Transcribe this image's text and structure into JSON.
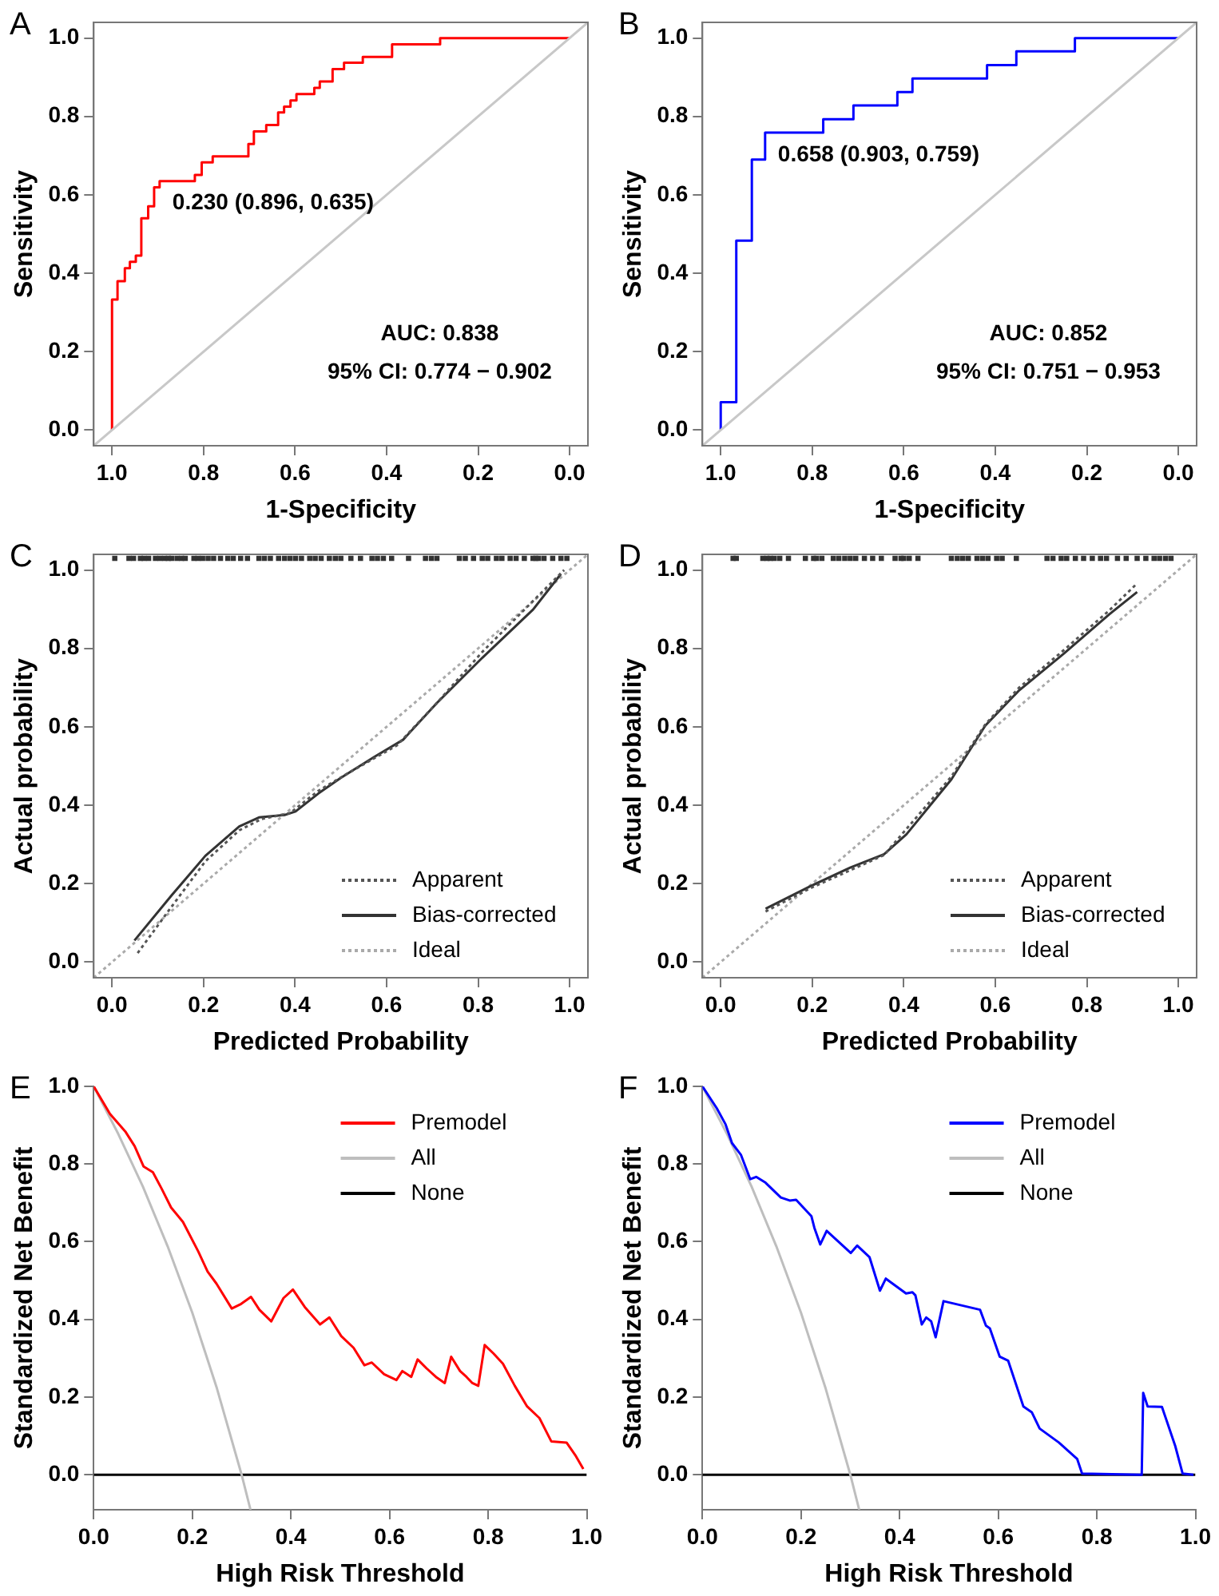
{
  "chart_data": [
    {
      "type": "line",
      "title": "A",
      "xlabel": "1-Specificity",
      "ylabel": "Sensitivity",
      "xlim": [
        1.04,
        -0.04
      ],
      "ylim": [
        -0.04,
        1.04
      ],
      "xticks": [
        {
          "value": 1,
          "label": "1.0"
        },
        {
          "value": 0.8,
          "label": "0.8"
        },
        {
          "value": 0.6,
          "label": "0.6"
        },
        {
          "value": 0.4,
          "label": "0.4"
        },
        {
          "value": 0.2,
          "label": "0.2"
        },
        {
          "value": 0,
          "label": "0.0"
        }
      ],
      "yticks": [
        {
          "value": 0,
          "label": "0.0"
        },
        {
          "value": 0.2,
          "label": "0.2"
        },
        {
          "value": 0.4,
          "label": "0.4"
        },
        {
          "value": 0.6,
          "label": "0.6"
        },
        {
          "value": 0.8,
          "label": "0.8"
        },
        {
          "value": 1,
          "label": "1.0"
        }
      ],
      "grid": false,
      "legend": false,
      "marker": "none",
      "series": [
        {
          "color": "#c8c8c8",
          "x": [
            1.04,
            -0.04
          ],
          "values": [
            -0.04,
            1.04
          ]
        },
        {
          "color": "#ff0000",
          "x": [
            1.0,
            1.0,
            0.988,
            0.988,
            0.972,
            0.972,
            0.961,
            0.961,
            0.948,
            0.948,
            0.936,
            0.936,
            0.921,
            0.921,
            0.908,
            0.908,
            0.896,
            0.896,
            0.819,
            0.819,
            0.804,
            0.804,
            0.78,
            0.78,
            0.702,
            0.702,
            0.69,
            0.69,
            0.663,
            0.663,
            0.637,
            0.637,
            0.624,
            0.624,
            0.61,
            0.61,
            0.597,
            0.597,
            0.558,
            0.558,
            0.546,
            0.546,
            0.518,
            0.518,
            0.493,
            0.493,
            0.452,
            0.452,
            0.388,
            0.388,
            0.283,
            0.283,
            0.0
          ],
          "values": [
            0,
            0.333,
            0.333,
            0.38,
            0.38,
            0.413,
            0.413,
            0.429,
            0.429,
            0.445,
            0.445,
            0.54,
            0.54,
            0.571,
            0.571,
            0.619,
            0.619,
            0.635,
            0.635,
            0.651,
            0.651,
            0.683,
            0.683,
            0.698,
            0.698,
            0.73,
            0.73,
            0.762,
            0.762,
            0.778,
            0.778,
            0.81,
            0.81,
            0.825,
            0.825,
            0.841,
            0.841,
            0.857,
            0.857,
            0.873,
            0.873,
            0.889,
            0.889,
            0.921,
            0.921,
            0.937,
            0.937,
            0.952,
            0.952,
            0.984,
            0.984,
            1.0,
            1.0
          ]
        }
      ],
      "annotations": [
        {
          "text": "0.230 (0.896, 0.635)",
          "x": 0.896,
          "y": 0.635
        },
        "AUC: 0.838",
        "95% CI: 0.774 − 0.902"
      ]
    },
    {
      "type": "line",
      "title": "B",
      "xlabel": "1-Specificity",
      "ylabel": "Sensitivity",
      "xlim": [
        1.04,
        -0.04
      ],
      "ylim": [
        -0.04,
        1.04
      ],
      "xticks": [
        {
          "value": 1,
          "label": "1.0"
        },
        {
          "value": 0.8,
          "label": "0.8"
        },
        {
          "value": 0.6,
          "label": "0.6"
        },
        {
          "value": 0.4,
          "label": "0.4"
        },
        {
          "value": 0.2,
          "label": "0.2"
        },
        {
          "value": 0,
          "label": "0.0"
        }
      ],
      "yticks": [
        {
          "value": 0,
          "label": "0.0"
        },
        {
          "value": 0.2,
          "label": "0.2"
        },
        {
          "value": 0.4,
          "label": "0.4"
        },
        {
          "value": 0.6,
          "label": "0.6"
        },
        {
          "value": 0.8,
          "label": "0.8"
        },
        {
          "value": 1,
          "label": "1.0"
        }
      ],
      "grid": false,
      "legend": false,
      "marker": "none",
      "series": [
        {
          "color": "#c8c8c8",
          "x": [
            1.04,
            -0.04
          ],
          "values": [
            -0.04,
            1.04
          ]
        },
        {
          "color": "#0000ff",
          "x": [
            1.0,
            1.0,
            0.966,
            0.966,
            0.932,
            0.932,
            0.903,
            0.903,
            0.776,
            0.776,
            0.71,
            0.71,
            0.614,
            0.614,
            0.581,
            0.581,
            0.418,
            0.418,
            0.354,
            0.354,
            0.226,
            0.226,
            0.0
          ],
          "values": [
            0,
            0.071,
            0.071,
            0.483,
            0.483,
            0.69,
            0.69,
            0.759,
            0.759,
            0.793,
            0.793,
            0.828,
            0.828,
            0.862,
            0.862,
            0.897,
            0.897,
            0.931,
            0.931,
            0.966,
            0.966,
            1.0,
            1.0
          ]
        }
      ],
      "annotations": [
        {
          "text": "0.658 (0.903, 0.759)",
          "x": 0.903,
          "y": 0.759
        },
        "AUC: 0.852",
        "95% CI: 0.751 − 0.953"
      ]
    },
    {
      "type": "line",
      "title": "C",
      "xlabel": "Predicted Probability",
      "ylabel": "Actual probability",
      "xlim": [
        -0.04,
        1.04
      ],
      "ylim": [
        -0.04,
        1.04
      ],
      "xticks": [
        {
          "value": 0,
          "label": "0.0"
        },
        {
          "value": 0.2,
          "label": "0.2"
        },
        {
          "value": 0.4,
          "label": "0.4"
        },
        {
          "value": 0.6,
          "label": "0.6"
        },
        {
          "value": 0.8,
          "label": "0.8"
        },
        {
          "value": 1,
          "label": "1.0"
        }
      ],
      "yticks": [
        {
          "value": 0,
          "label": "0.0"
        },
        {
          "value": 0.2,
          "label": "0.2"
        },
        {
          "value": 0.4,
          "label": "0.4"
        },
        {
          "value": 0.6,
          "label": "0.6"
        },
        {
          "value": 0.8,
          "label": "0.8"
        },
        {
          "value": 1,
          "label": "1.0"
        }
      ],
      "grid": false,
      "legend": "bottom right",
      "marker": "none",
      "series": [
        {
          "name": "Apparent",
          "color": "#555555",
          "line_style": "dotted",
          "x": [
            0.056,
            0.13,
            0.204,
            0.278,
            0.327,
            0.389,
            0.451,
            0.525,
            0.623,
            0.71,
            0.809,
            0.92,
            0.988
          ],
          "values": [
            0.023,
            0.141,
            0.257,
            0.336,
            0.365,
            0.38,
            0.437,
            0.488,
            0.553,
            0.661,
            0.791,
            0.921,
            1.0
          ]
        },
        {
          "name": "Bias-corrected",
          "color": "#333333",
          "line_style": "solid",
          "x": [
            0.049,
            0.13,
            0.204,
            0.278,
            0.321,
            0.377,
            0.401,
            0.451,
            0.5,
            0.574,
            0.636,
            0.71,
            0.809,
            0.92,
            0.981
          ],
          "values": [
            0.055,
            0.17,
            0.271,
            0.346,
            0.369,
            0.375,
            0.384,
            0.43,
            0.47,
            0.524,
            0.567,
            0.661,
            0.776,
            0.899,
            0.99
          ]
        },
        {
          "name": "Ideal",
          "color": "#aaaaaa",
          "line_style": "dotted",
          "x": [
            -0.04,
            1.04
          ],
          "values": [
            -0.04,
            1.04
          ]
        },
        {
          "type": "scatter",
          "marker": "square",
          "color": "#333333",
          "x": [
            0.006,
            0.037,
            0.047,
            0.062,
            0.07,
            0.08,
            0.095,
            0.105,
            0.115,
            0.123,
            0.13,
            0.142,
            0.152,
            0.16,
            0.179,
            0.188,
            0.198,
            0.21,
            0.222,
            0.237,
            0.253,
            0.265,
            0.281,
            0.296,
            0.321,
            0.333,
            0.346,
            0.364,
            0.377,
            0.389,
            0.401,
            0.414,
            0.432,
            0.444,
            0.457,
            0.475,
            0.488,
            0.5,
            0.522,
            0.543,
            0.568,
            0.58,
            0.593,
            0.611,
            0.648,
            0.685,
            0.698,
            0.71,
            0.759,
            0.772,
            0.79,
            0.809,
            0.821,
            0.84,
            0.852,
            0.87,
            0.883,
            0.901,
            0.92,
            0.926,
            0.932,
            0.944,
            0.963,
            0.981,
            0.994
          ],
          "values": [
            1.03,
            1.03,
            1.03,
            1.03,
            1.03,
            1.03,
            1.03,
            1.03,
            1.03,
            1.03,
            1.03,
            1.03,
            1.03,
            1.03,
            1.03,
            1.03,
            1.03,
            1.03,
            1.03,
            1.03,
            1.03,
            1.03,
            1.03,
            1.03,
            1.03,
            1.03,
            1.03,
            1.03,
            1.03,
            1.03,
            1.03,
            1.03,
            1.03,
            1.03,
            1.03,
            1.03,
            1.03,
            1.03,
            1.03,
            1.03,
            1.03,
            1.03,
            1.03,
            1.03,
            1.03,
            1.03,
            1.03,
            1.03,
            1.03,
            1.03,
            1.03,
            1.03,
            1.03,
            1.03,
            1.03,
            1.03,
            1.03,
            1.03,
            1.03,
            1.03,
            1.03,
            1.03,
            1.03,
            1.03,
            1.03
          ]
        }
      ]
    },
    {
      "type": "line",
      "title": "D",
      "xlabel": "Predicted Probability",
      "ylabel": "Actual probability",
      "xlim": [
        -0.04,
        1.04
      ],
      "ylim": [
        -0.04,
        1.04
      ],
      "xticks": [
        {
          "value": 0,
          "label": "0.0"
        },
        {
          "value": 0.2,
          "label": "0.2"
        },
        {
          "value": 0.4,
          "label": "0.4"
        },
        {
          "value": 0.6,
          "label": "0.6"
        },
        {
          "value": 0.8,
          "label": "0.8"
        },
        {
          "value": 1,
          "label": "1.0"
        }
      ],
      "yticks": [
        {
          "value": 0,
          "label": "0.0"
        },
        {
          "value": 0.2,
          "label": "0.2"
        },
        {
          "value": 0.4,
          "label": "0.4"
        },
        {
          "value": 0.6,
          "label": "0.6"
        },
        {
          "value": 0.8,
          "label": "0.8"
        },
        {
          "value": 1,
          "label": "1.0"
        }
      ],
      "grid": false,
      "legend": "bottom right",
      "marker": "none",
      "series": [
        {
          "name": "Apparent",
          "color": "#555555",
          "line_style": "dotted",
          "x": [
            0.098,
            0.197,
            0.357,
            0.504,
            0.578,
            0.652,
            0.75,
            0.849,
            0.91
          ],
          "values": [
            0.129,
            0.189,
            0.273,
            0.473,
            0.606,
            0.7,
            0.796,
            0.897,
            0.966
          ]
        },
        {
          "name": "Bias-corrected",
          "color": "#333333",
          "line_style": "solid",
          "x": [
            0.098,
            0.197,
            0.283,
            0.357,
            0.406,
            0.504,
            0.578,
            0.652,
            0.75,
            0.849,
            0.91
          ],
          "values": [
            0.136,
            0.194,
            0.241,
            0.275,
            0.326,
            0.466,
            0.603,
            0.693,
            0.787,
            0.887,
            0.944
          ]
        },
        {
          "name": "Ideal",
          "color": "#aaaaaa",
          "line_style": "dotted",
          "x": [
            -0.04,
            1.04
          ],
          "values": [
            -0.04,
            1.04
          ]
        },
        {
          "type": "scatter",
          "marker": "square",
          "color": "#333333",
          "x": [
            0.027,
            0.034,
            0.092,
            0.101,
            0.108,
            0.117,
            0.129,
            0.148,
            0.185,
            0.203,
            0.209,
            0.221,
            0.246,
            0.258,
            0.271,
            0.283,
            0.295,
            0.314,
            0.332,
            0.351,
            0.381,
            0.394,
            0.4,
            0.412,
            0.431,
            0.504,
            0.517,
            0.529,
            0.541,
            0.56,
            0.572,
            0.584,
            0.603,
            0.615,
            0.646,
            0.713,
            0.726,
            0.744,
            0.756,
            0.775,
            0.793,
            0.812,
            0.83,
            0.843,
            0.867,
            0.886,
            0.91,
            0.929,
            0.947,
            0.959,
            0.972,
            0.984
          ],
          "values": [
            1.03,
            1.03,
            1.03,
            1.03,
            1.03,
            1.03,
            1.03,
            1.03,
            1.03,
            1.03,
            1.03,
            1.03,
            1.03,
            1.03,
            1.03,
            1.03,
            1.03,
            1.03,
            1.03,
            1.03,
            1.03,
            1.03,
            1.03,
            1.03,
            1.03,
            1.03,
            1.03,
            1.03,
            1.03,
            1.03,
            1.03,
            1.03,
            1.03,
            1.03,
            1.03,
            1.03,
            1.03,
            1.03,
            1.03,
            1.03,
            1.03,
            1.03,
            1.03,
            1.03,
            1.03,
            1.03,
            1.03,
            1.03,
            1.03,
            1.03,
            1.03,
            1.03
          ]
        }
      ]
    },
    {
      "type": "line",
      "title": "E",
      "xlabel": "High Risk Threshold",
      "ylabel": "Standardized Net Benefit",
      "xlim": [
        0,
        1
      ],
      "ylim": [
        -0.09,
        1
      ],
      "xticks": [
        {
          "value": 0,
          "label": "0.0"
        },
        {
          "value": 0.2,
          "label": "0.2"
        },
        {
          "value": 0.4,
          "label": "0.4"
        },
        {
          "value": 0.6,
          "label": "0.6"
        },
        {
          "value": 0.8,
          "label": "0.8"
        },
        {
          "value": 1,
          "label": "1.0"
        }
      ],
      "yticks": [
        {
          "value": 0,
          "label": "0.0"
        },
        {
          "value": 0.2,
          "label": "0.2"
        },
        {
          "value": 0.4,
          "label": "0.4"
        },
        {
          "value": 0.6,
          "label": "0.6"
        },
        {
          "value": 0.8,
          "label": "0.8"
        },
        {
          "value": 1,
          "label": "1.0"
        }
      ],
      "grid": false,
      "legend": "top right",
      "marker": "none",
      "series": [
        {
          "name": "Premodel",
          "color": "#ff0000",
          "x": [
            0,
            0.033,
            0.064,
            0.083,
            0.101,
            0.12,
            0.138,
            0.157,
            0.181,
            0.212,
            0.231,
            0.249,
            0.28,
            0.299,
            0.319,
            0.336,
            0.36,
            0.385,
            0.404,
            0.428,
            0.459,
            0.478,
            0.502,
            0.527,
            0.549,
            0.564,
            0.589,
            0.614,
            0.626,
            0.644,
            0.657,
            0.675,
            0.694,
            0.712,
            0.725,
            0.743,
            0.756,
            0.768,
            0.78,
            0.793,
            0.811,
            0.83,
            0.854,
            0.879,
            0.904,
            0.928,
            0.959,
            0.978,
            0.993
          ],
          "values": [
            1.0,
            0.929,
            0.884,
            0.846,
            0.794,
            0.779,
            0.736,
            0.688,
            0.651,
            0.575,
            0.523,
            0.492,
            0.428,
            0.44,
            0.458,
            0.425,
            0.395,
            0.455,
            0.477,
            0.432,
            0.387,
            0.405,
            0.357,
            0.327,
            0.282,
            0.289,
            0.259,
            0.244,
            0.267,
            0.252,
            0.297,
            0.274,
            0.252,
            0.236,
            0.304,
            0.267,
            0.252,
            0.236,
            0.229,
            0.334,
            0.312,
            0.286,
            0.229,
            0.176,
            0.146,
            0.086,
            0.083,
            0.048,
            0.015
          ]
        },
        {
          "name": "All",
          "color": "#bebebe",
          "x": [
            0,
            0.05,
            0.1,
            0.15,
            0.2,
            0.25,
            0.3,
            0.318
          ],
          "values": [
            1.0,
            0.877,
            0.741,
            0.588,
            0.417,
            0.222,
            0,
            -0.09
          ]
        },
        {
          "name": "None",
          "color": "#000000",
          "x": [
            0,
            1
          ],
          "values": [
            0,
            0
          ]
        }
      ]
    },
    {
      "type": "line",
      "title": "F",
      "xlabel": "High Risk Threshold",
      "ylabel": "Standardized Net Benefit",
      "xlim": [
        0,
        1
      ],
      "ylim": [
        -0.09,
        1
      ],
      "xticks": [
        {
          "value": 0,
          "label": "0.0"
        },
        {
          "value": 0.2,
          "label": "0.2"
        },
        {
          "value": 0.4,
          "label": "0.4"
        },
        {
          "value": 0.6,
          "label": "0.6"
        },
        {
          "value": 0.8,
          "label": "0.8"
        },
        {
          "value": 1,
          "label": "1.0"
        }
      ],
      "yticks": [
        {
          "value": 0,
          "label": "0.0"
        },
        {
          "value": 0.2,
          "label": "0.2"
        },
        {
          "value": 0.4,
          "label": "0.4"
        },
        {
          "value": 0.6,
          "label": "0.6"
        },
        {
          "value": 0.8,
          "label": "0.8"
        },
        {
          "value": 1,
          "label": "1.0"
        }
      ],
      "grid": false,
      "legend": "top right",
      "marker": "none",
      "series": [
        {
          "name": "Premodel",
          "color": "#0000ff",
          "x": [
            0,
            0.029,
            0.047,
            0.06,
            0.078,
            0.097,
            0.109,
            0.128,
            0.159,
            0.177,
            0.19,
            0.221,
            0.227,
            0.239,
            0.252,
            0.301,
            0.314,
            0.339,
            0.36,
            0.372,
            0.413,
            0.426,
            0.432,
            0.445,
            0.454,
            0.464,
            0.473,
            0.489,
            0.563,
            0.575,
            0.583,
            0.603,
            0.62,
            0.651,
            0.668,
            0.684,
            0.723,
            0.76,
            0.77,
            0.891,
            0.894,
            0.903,
            0.932,
            0.959,
            0.974,
            0.996
          ],
          "values": [
            1.0,
            0.944,
            0.902,
            0.854,
            0.824,
            0.761,
            0.767,
            0.752,
            0.714,
            0.706,
            0.708,
            0.666,
            0.636,
            0.593,
            0.628,
            0.571,
            0.59,
            0.56,
            0.474,
            0.505,
            0.467,
            0.47,
            0.462,
            0.387,
            0.405,
            0.395,
            0.354,
            0.447,
            0.425,
            0.384,
            0.377,
            0.304,
            0.294,
            0.176,
            0.161,
            0.119,
            0.083,
            0.041,
            0.003,
            0,
            0.211,
            0.176,
            0.175,
            0.074,
            0.003,
            0
          ]
        },
        {
          "name": "All",
          "color": "#bebebe",
          "x": [
            0,
            0.05,
            0.1,
            0.15,
            0.2,
            0.25,
            0.3,
            0.318
          ],
          "values": [
            1.0,
            0.877,
            0.741,
            0.588,
            0.417,
            0.222,
            0,
            -0.09
          ]
        },
        {
          "name": "None",
          "color": "#000000",
          "x": [
            0,
            1
          ],
          "values": [
            0,
            0
          ]
        }
      ]
    }
  ]
}
